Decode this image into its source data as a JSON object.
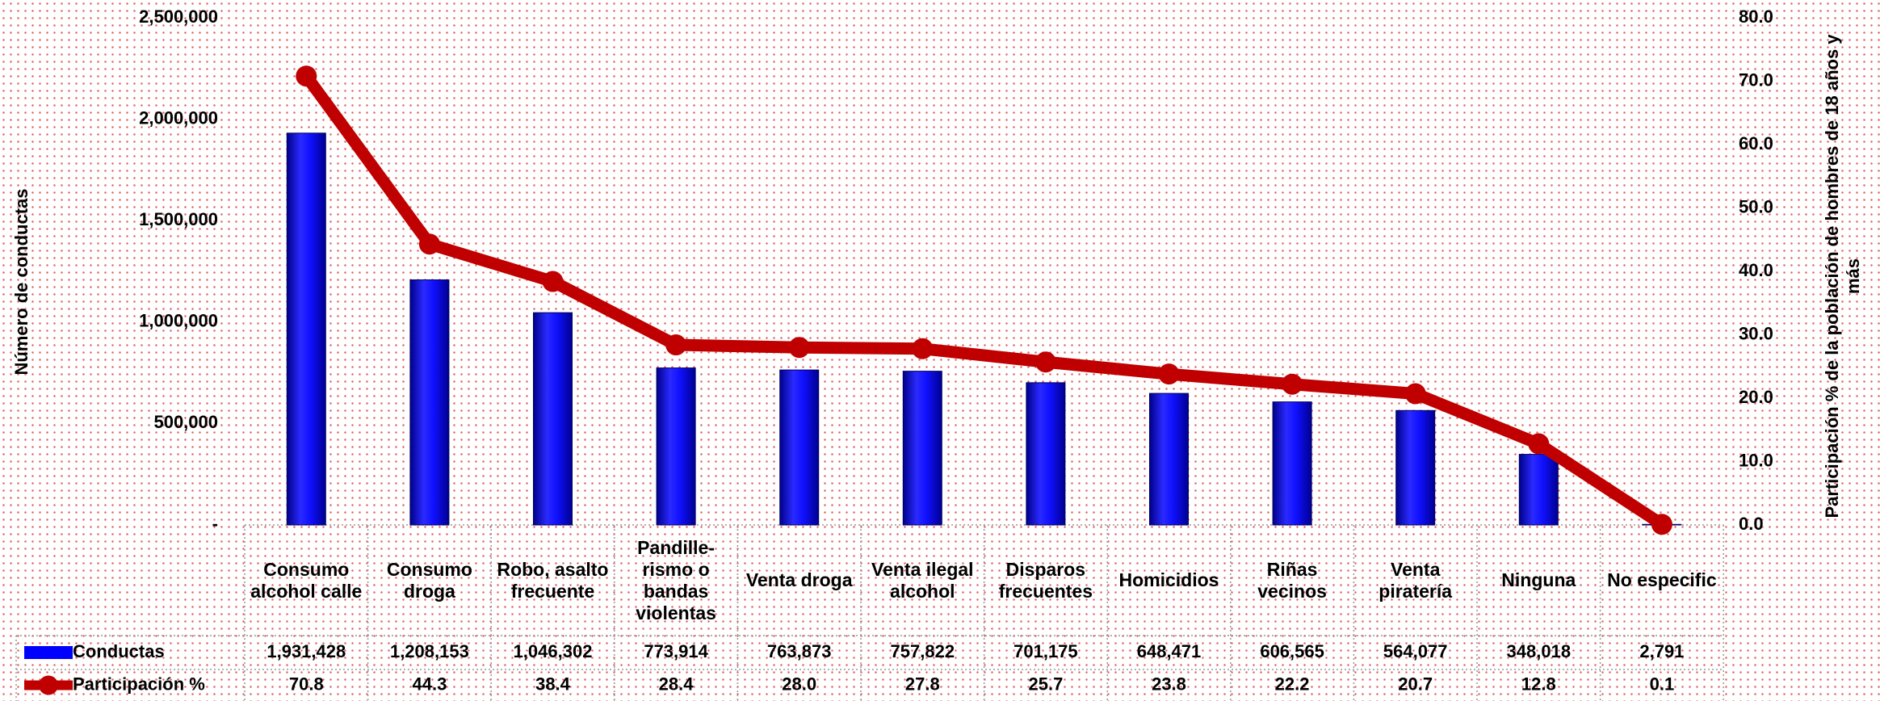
{
  "chart_data": {
    "type": "bar_line",
    "y_label": "Número de conductas",
    "y2_label": "Participación % de la población de hombres de 18 años y más",
    "categories": [
      "Consumo alcohol calle",
      "Consumo droga",
      "Robo, asalto frecuente",
      "Pandille-rismo o bandas violentas",
      "Venta droga",
      "Venta ilegal alcohol",
      "Disparos frecuentes",
      "Homicidios",
      "Riñas vecinos",
      "Venta piratería",
      "Ninguna",
      "No especific"
    ],
    "series": [
      {
        "name": "Conductas",
        "type": "bar",
        "color": "#0000ff",
        "values": [
          1931428,
          1208153,
          1046302,
          773914,
          763873,
          757822,
          701175,
          648471,
          606565,
          564077,
          348018,
          2791
        ],
        "value_labels": [
          "1,931,428",
          "1,208,153",
          "1,046,302",
          "773,914",
          "763,873",
          "757,822",
          "701,175",
          "648,471",
          "606,565",
          "564,077",
          "348,018",
          "2,791"
        ]
      },
      {
        "name": "Participación %",
        "type": "line",
        "axis": "y2",
        "color": "#c00000",
        "values": [
          70.8,
          44.3,
          38.4,
          28.4,
          28.0,
          27.8,
          25.7,
          23.8,
          22.2,
          20.7,
          12.8,
          0.1
        ],
        "value_labels": [
          "70.8",
          "44.3",
          "38.4",
          "28.4",
          "28.0",
          "27.8",
          "25.7",
          "23.8",
          "22.2",
          "20.7",
          "12.8",
          "0.1"
        ]
      }
    ],
    "ylim": [
      0,
      2500000
    ],
    "yticks": [
      {
        "value": 0,
        "label": "-"
      },
      {
        "value": 500000,
        "label": "500,000"
      },
      {
        "value": 1000000,
        "label": "1,000,000"
      },
      {
        "value": 1500000,
        "label": "1,500,000"
      },
      {
        "value": 2000000,
        "label": "2,000,000"
      },
      {
        "value": 2500000,
        "label": "2,500,000"
      }
    ],
    "y2lim": [
      0,
      80
    ],
    "y2ticks": [
      {
        "value": 0,
        "label": "0.0"
      },
      {
        "value": 10,
        "label": "10.0"
      },
      {
        "value": 20,
        "label": "20.0"
      },
      {
        "value": 30,
        "label": "30.0"
      },
      {
        "value": 40,
        "label": "40.0"
      },
      {
        "value": 50,
        "label": "50.0"
      },
      {
        "value": 60,
        "label": "60.0"
      },
      {
        "value": 70,
        "label": "70.0"
      },
      {
        "value": 80,
        "label": "80.0"
      }
    ],
    "grid": false,
    "data_table": true
  }
}
